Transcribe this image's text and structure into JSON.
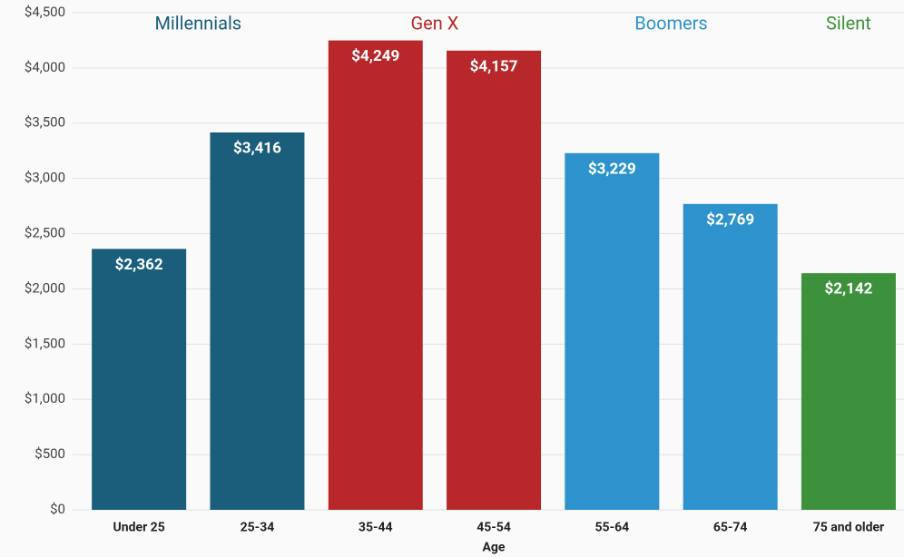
{
  "chart_data": {
    "type": "bar",
    "x_label": "Age",
    "categories": [
      "Under 25",
      "25-34",
      "35-44",
      "45-54",
      "55-64",
      "65-74",
      "75 and older"
    ],
    "series": [
      {
        "name": "Millennials",
        "color": "#1b5e7b",
        "values": [
          2362,
          3416,
          null,
          null,
          null,
          null,
          null
        ],
        "value_labels": [
          "$2,362",
          "$3,416",
          null,
          null,
          null,
          null,
          null
        ]
      },
      {
        "name": "Gen X",
        "color": "#b8282b",
        "values": [
          null,
          null,
          4249,
          4157,
          null,
          null,
          null
        ],
        "value_labels": [
          null,
          null,
          "$4,249",
          "$4,157",
          null,
          null,
          null
        ]
      },
      {
        "name": "Boomers",
        "color": "#2e93cc",
        "values": [
          null,
          null,
          null,
          null,
          3229,
          2769,
          null
        ],
        "value_labels": [
          null,
          null,
          null,
          null,
          "$3,229",
          "$2,769",
          null
        ]
      },
      {
        "name": "Silent",
        "color": "#3e913c",
        "values": [
          null,
          null,
          null,
          null,
          null,
          null,
          2142
        ],
        "value_labels": [
          null,
          null,
          null,
          null,
          null,
          null,
          "$2,142"
        ]
      }
    ],
    "ylim": [
      0,
      4500
    ],
    "yticks": [
      {
        "value": 0,
        "label": "$0"
      },
      {
        "value": 500,
        "label": "$500"
      },
      {
        "value": 1000,
        "label": "$1,000"
      },
      {
        "value": 1500,
        "label": "$1,500"
      },
      {
        "value": 2000,
        "label": "$2,000"
      },
      {
        "value": 2500,
        "label": "$2,500"
      },
      {
        "value": 3000,
        "label": "$3,000"
      },
      {
        "value": 3500,
        "label": "$3,500"
      },
      {
        "value": 4000,
        "label": "$4,000"
      },
      {
        "value": 4500,
        "label": "$4,500"
      }
    ],
    "grid": true
  }
}
